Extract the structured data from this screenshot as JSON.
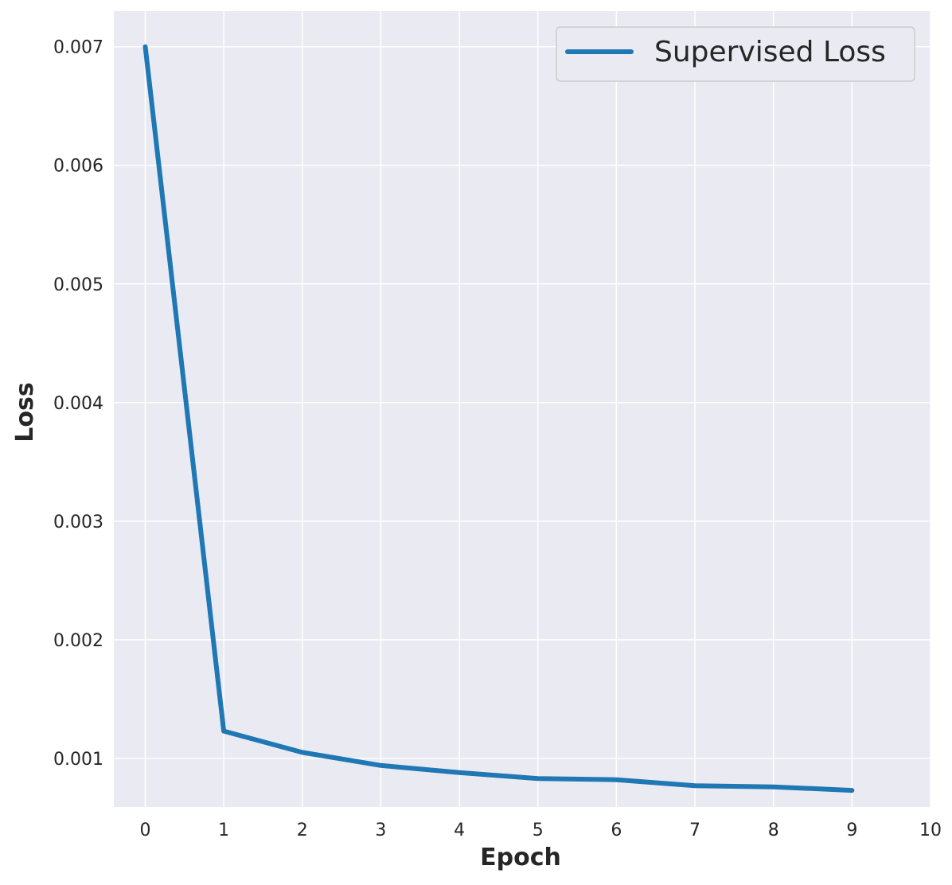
{
  "chart_data": {
    "type": "line",
    "title": "",
    "xlabel": "Epoch",
    "ylabel": "Loss",
    "xlim": [
      -0.4,
      10
    ],
    "ylim": [
      0.00059,
      0.0073
    ],
    "x_ticks": [
      0,
      1,
      2,
      3,
      4,
      5,
      6,
      7,
      8,
      9,
      10
    ],
    "x_tick_labels": [
      "0",
      "1",
      "2",
      "3",
      "4",
      "5",
      "6",
      "7",
      "8",
      "9",
      "10"
    ],
    "y_ticks": [
      0.001,
      0.002,
      0.003,
      0.004,
      0.005,
      0.006,
      0.007
    ],
    "y_tick_labels": [
      "0.001",
      "0.002",
      "0.003",
      "0.004",
      "0.005",
      "0.006",
      "0.007"
    ],
    "grid": true,
    "legend_position": "top-right",
    "background_color": "#eaeaf2",
    "series": [
      {
        "name": "Supervised Loss",
        "color": "#1f77b4",
        "x": [
          0,
          1,
          2,
          3,
          4,
          5,
          6,
          7,
          8,
          9
        ],
        "values": [
          0.007,
          0.00123,
          0.00105,
          0.00094,
          0.00088,
          0.00083,
          0.00082,
          0.00077,
          0.00076,
          0.00073
        ]
      }
    ]
  }
}
